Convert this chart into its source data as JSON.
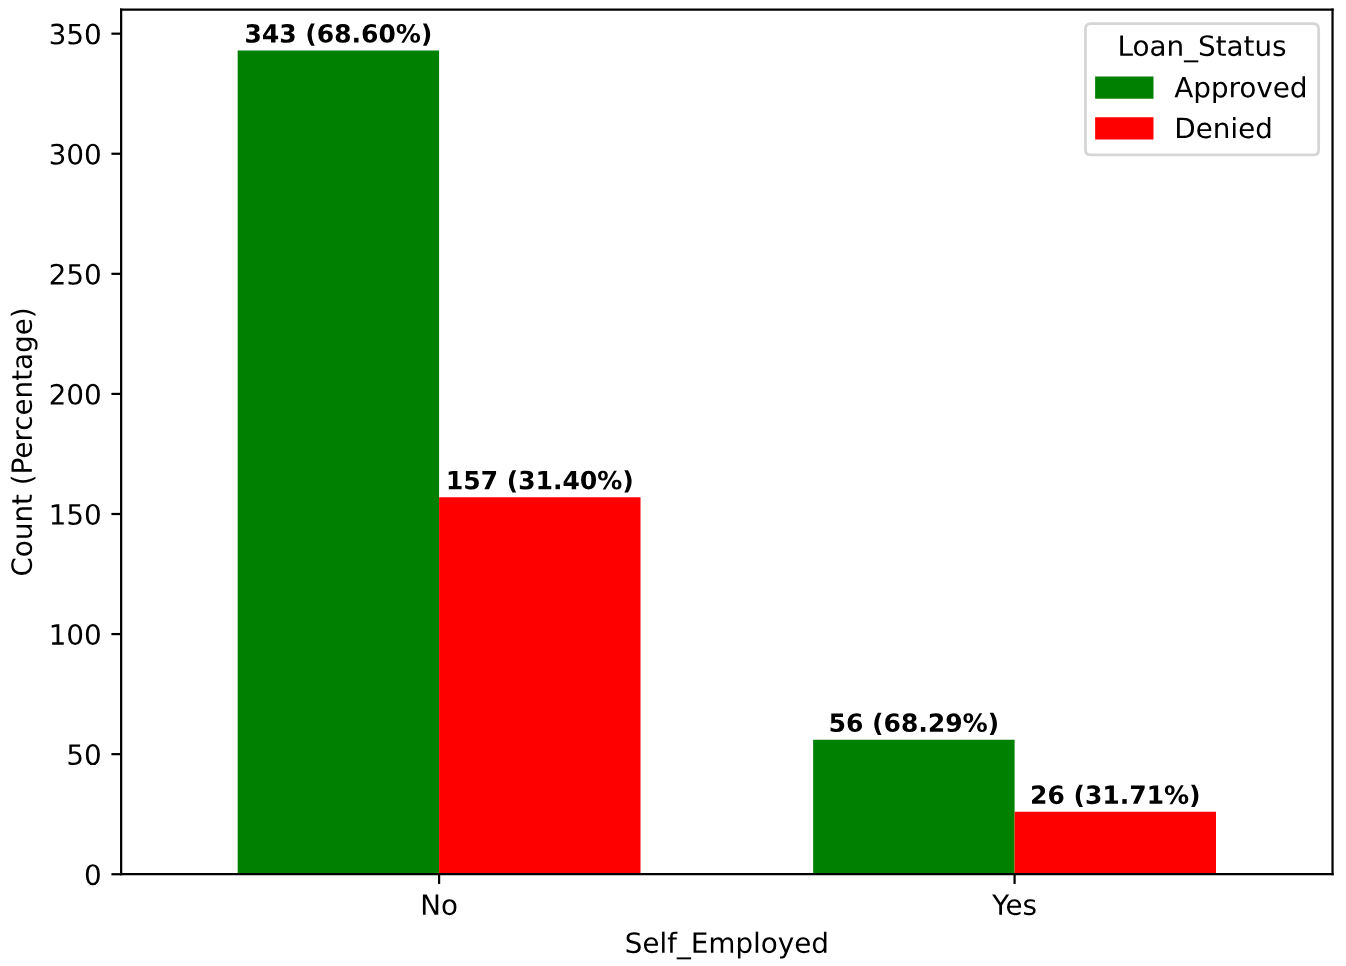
{
  "chart_data": {
    "type": "bar",
    "xlabel": "Self_Employed",
    "ylabel": "Count (Percentage)",
    "legend_title": "Loan_Status",
    "categories": [
      "No",
      "Yes"
    ],
    "series": [
      {
        "name": "Approved",
        "color": "#008000",
        "values": [
          343,
          56
        ],
        "value_labels": [
          "343 (68.60%)",
          "56 (68.29%)"
        ]
      },
      {
        "name": "Denied",
        "color": "#ff0000",
        "values": [
          157,
          26
        ],
        "value_labels": [
          "157 (31.40%)",
          "26 (31.71%)"
        ]
      }
    ],
    "ylim": [
      0,
      360
    ],
    "yticks": [
      0,
      50,
      100,
      150,
      200,
      250,
      300,
      350
    ],
    "legend": "top right",
    "grid": false
  }
}
